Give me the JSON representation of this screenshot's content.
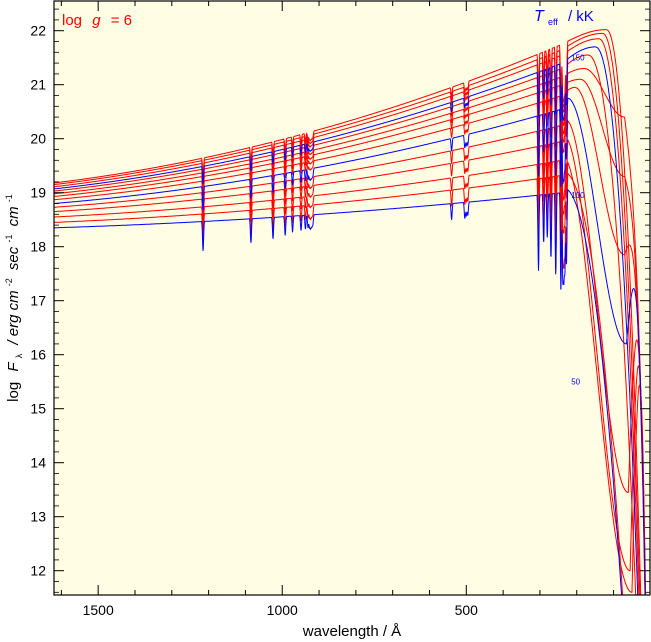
{
  "chart_data": {
    "type": "line",
    "xlabel": "wavelength / Å",
    "ylabel": "log Fλ / erg cm⁻² sec⁻¹ cm⁻¹",
    "ylabel_parts": {
      "log": "log",
      "F": "F",
      "lambda": "λ",
      "rest": "/ erg cm",
      "e2": "-2",
      "sec": "sec",
      "e1": "-1",
      "cm": "cm",
      "e3": "-1"
    },
    "xlim": [
      1620,
      1
    ],
    "ylim": [
      11.55,
      22.55
    ],
    "x_ticks": [
      1500,
      1000,
      500
    ],
    "x_tick_labels": [
      "1500",
      "1000",
      "500"
    ],
    "y_ticks": [
      12,
      13,
      14,
      15,
      16,
      17,
      18,
      19,
      20,
      21,
      22
    ],
    "y_tick_labels": [
      "12",
      "13",
      "14",
      "15",
      "16",
      "17",
      "18",
      "19",
      "20",
      "21",
      "22"
    ],
    "annotation_left": {
      "text": "log g = 6",
      "parts": [
        "log",
        "g",
        "= 6"
      ],
      "color": "#ff0000"
    },
    "annotation_right": {
      "text": "Teff / kK",
      "parts": [
        "T",
        "eff",
        "/ kK"
      ],
      "color": "#0000ff"
    },
    "curve_labels": [
      {
        "text": "150",
        "x": 215,
        "y": 21.45
      },
      {
        "text": "100",
        "x": 215,
        "y": 18.9
      },
      {
        "text": "50",
        "x": 215,
        "y": 15.45
      }
    ],
    "background_color": "#fffde3",
    "series_colors": {
      "blue": "#0000ff",
      "red": "#ff0000"
    },
    "series": [
      {
        "teff": 50,
        "color": "#0000ff",
        "y1620": 18.35,
        "y240": 19.0,
        "peak_y": 19.1,
        "peak_x": 240,
        "dip_x": null,
        "dip_y": null
      },
      {
        "teff": 60,
        "color": "#ff0000",
        "y1620": 18.45,
        "y240": 19.32,
        "peak_y": 19.4,
        "peak_x": 240,
        "dip_x": null,
        "dip_y": null
      },
      {
        "teff": 70,
        "color": "#ff0000",
        "y1620": 18.55,
        "y240": 19.6,
        "peak_y": 19.7,
        "peak_x": 240,
        "dip_x": 50,
        "dip_y": 11.6
      },
      {
        "teff": 80,
        "color": "#ff0000",
        "y1620": 18.65,
        "y240": 19.95,
        "peak_y": 20.05,
        "peak_x": 235,
        "dip_x": 55,
        "dip_y": 12.0
      },
      {
        "teff": 90,
        "color": "#ff0000",
        "y1620": 18.73,
        "y240": 20.25,
        "peak_y": 20.35,
        "peak_x": 230,
        "dip_x": 60,
        "dip_y": 13.45
      },
      {
        "teff": 100,
        "color": "#0000ff",
        "y1620": 18.8,
        "y240": 20.55,
        "peak_y": 20.75,
        "peak_x": 225,
        "dip_x": 65,
        "dip_y": 16.2
      },
      {
        "teff": 110,
        "color": "#ff0000",
        "y1620": 18.87,
        "y240": 20.8,
        "peak_y": 20.95,
        "peak_x": 205,
        "dip_x": 70,
        "dip_y": 17.85
      },
      {
        "teff": 120,
        "color": "#ff0000",
        "y1620": 18.93,
        "y240": 21.0,
        "peak_y": 21.1,
        "peak_x": 190,
        "dip_x": 70,
        "dip_y": 19.3
      },
      {
        "teff": 130,
        "color": "#ff0000",
        "y1620": 18.98,
        "y240": 21.15,
        "peak_y": 21.3,
        "peak_x": 180,
        "dip_x": 70,
        "dip_y": 20.4
      },
      {
        "teff": 140,
        "color": "#ff0000",
        "y1620": 19.03,
        "y240": 21.3,
        "peak_y": 21.55,
        "peak_x": 170,
        "dip_x": null,
        "dip_y": null
      },
      {
        "teff": 150,
        "color": "#0000ff",
        "y1620": 19.07,
        "y240": 21.4,
        "peak_y": 21.7,
        "peak_x": 150,
        "dip_x": null,
        "dip_y": null
      },
      {
        "teff": 160,
        "color": "#ff0000",
        "y1620": 19.11,
        "y240": 21.55,
        "peak_y": 21.85,
        "peak_x": 140,
        "dip_x": null,
        "dip_y": null
      },
      {
        "teff": 170,
        "color": "#ff0000",
        "y1620": 19.15,
        "y240": 21.65,
        "peak_y": 21.95,
        "peak_x": 130,
        "dip_x": null,
        "dip_y": null
      },
      {
        "teff": 180,
        "color": "#ff0000",
        "y1620": 19.18,
        "y240": 21.75,
        "peak_y": 22.02,
        "peak_x": 120,
        "dip_x": null,
        "dip_y": null
      }
    ],
    "lines": [
      {
        "x": 1215,
        "depth": 0.55
      },
      {
        "x": 1085,
        "depth": 0.45
      },
      {
        "x": 1025,
        "depth": 0.4
      },
      {
        "x": 992,
        "depth": 0.35
      },
      {
        "x": 972,
        "depth": 0.3
      },
      {
        "x": 949,
        "depth": 0.28
      },
      {
        "x": 937,
        "depth": 0.26
      },
      {
        "x": 930,
        "depth": 0.24
      },
      {
        "x": 926,
        "depth": 0.22
      },
      {
        "x": 923,
        "depth": 0.22
      },
      {
        "x": 920,
        "depth": 0.2
      },
      {
        "x": 917,
        "depth": 0.18
      },
      {
        "x": 540,
        "depth": 0.3
      },
      {
        "x": 504,
        "depth": 0.3
      },
      {
        "x": 500,
        "depth": 0.25
      },
      {
        "x": 496,
        "depth": 0.25
      },
      {
        "x": 304,
        "depth": 1.4
      },
      {
        "x": 290,
        "depth": 0.9
      },
      {
        "x": 280,
        "depth": 0.8
      },
      {
        "x": 270,
        "depth": 1.2
      },
      {
        "x": 257,
        "depth": 1.5
      },
      {
        "x": 243,
        "depth": 1.8
      },
      {
        "x": 238,
        "depth": 1.6
      },
      {
        "x": 235,
        "depth": 1.5
      },
      {
        "x": 232,
        "depth": 1.4
      },
      {
        "x": 228,
        "depth": 1.4
      }
    ]
  }
}
